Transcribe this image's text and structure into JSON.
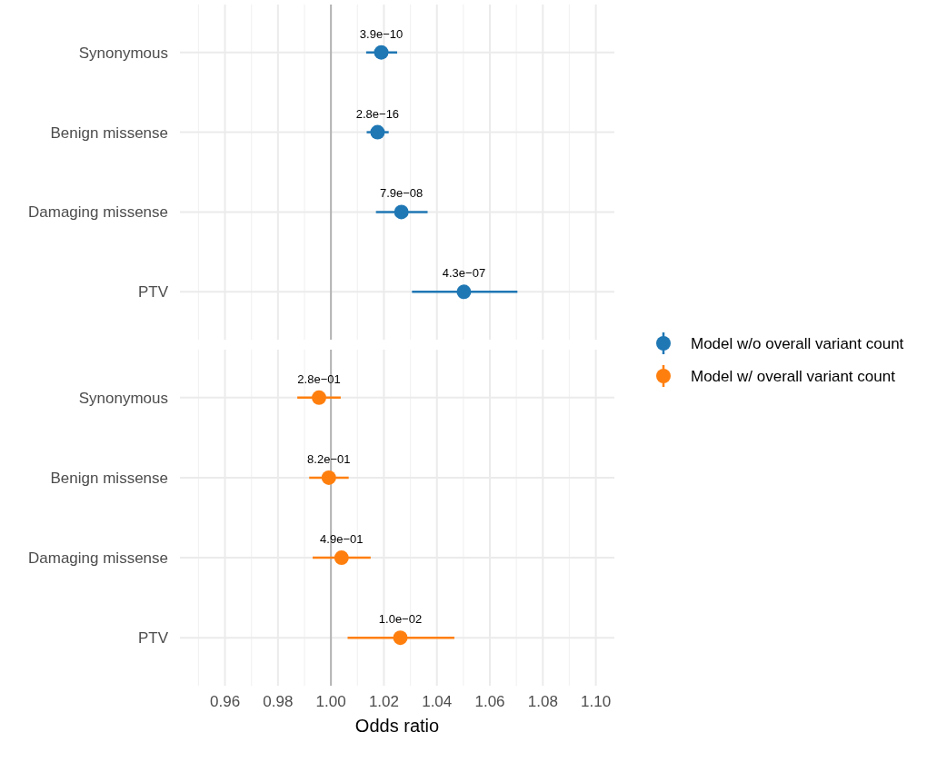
{
  "chart_data": [
    {
      "type": "scatter",
      "orientation": "horizontal",
      "categories": [
        "Synonymous",
        "Benign missense",
        "Damaging missense",
        "PTV"
      ],
      "series": [
        {
          "name": "Model w/o overall variant count",
          "color": "#1f77b4",
          "values": [
            1.019,
            1.0176,
            1.0266,
            1.0502
          ],
          "errors": [
            [
              1.0133,
              1.025
            ],
            [
              1.0135,
              1.0218
            ],
            [
              1.017,
              1.0365
            ],
            [
              1.0306,
              1.0704
            ]
          ]
        }
      ],
      "annotations": [
        {
          "text": "3.9e−10",
          "x": 1.019,
          "y": "Synonymous"
        },
        {
          "text": "2.8e−16",
          "x": 1.0176,
          "y": "Benign missense"
        },
        {
          "text": "7.9e−08",
          "x": 1.0266,
          "y": "Damaging missense"
        },
        {
          "text": "4.3e−07",
          "x": 1.0502,
          "y": "PTV"
        }
      ],
      "xlim": [
        0.943,
        1.107
      ],
      "xticks": [
        {
          "value": 0.95,
          "label": null
        },
        0.96,
        {
          "value": 0.97,
          "label": null
        },
        0.98,
        {
          "value": 0.99,
          "label": null
        },
        1,
        {
          "value": 1.01,
          "label": null
        },
        1.02,
        {
          "value": 1.03,
          "label": null
        },
        1.04,
        {
          "value": 1.05,
          "label": null
        },
        1.06,
        {
          "value": 1.07,
          "label": null
        },
        1.08,
        {
          "value": 1.09,
          "label": null
        },
        1.1
      ],
      "tick_labels": "y",
      "grid": true,
      "legend": "right",
      "ref_lines": [
        {
          "axis": "x",
          "value": 1,
          "color": "#b3b3b3"
        }
      ]
    },
    {
      "type": "scatter",
      "orientation": "horizontal",
      "categories": [
        "Synonymous",
        "Benign missense",
        "Damaging missense",
        "PTV"
      ],
      "series": [
        {
          "name": "Model w/ overall variant count",
          "color": "#ff7f0e",
          "values": [
            0.9955,
            0.9992,
            1.004,
            1.0262
          ],
          "errors": [
            [
              0.9873,
              1.0037
            ],
            [
              0.9918,
              1.0067
            ],
            [
              0.9931,
              1.015
            ],
            [
              1.0063,
              1.0466
            ]
          ]
        }
      ],
      "annotations": [
        {
          "text": "2.8e−01",
          "x": 0.9955,
          "y": "Synonymous"
        },
        {
          "text": "8.2e−01",
          "x": 0.9992,
          "y": "Benign missense"
        },
        {
          "text": "4.9e−01",
          "x": 1.004,
          "y": "Damaging missense"
        },
        {
          "text": "1.0e−02",
          "x": 1.0262,
          "y": "PTV"
        }
      ],
      "xlabel": "Odds ratio",
      "xlim": [
        0.943,
        1.107
      ],
      "xticks": [
        {
          "value": 0.95,
          "label": null
        },
        0.96,
        {
          "value": 0.97,
          "label": null
        },
        0.98,
        {
          "value": 0.99,
          "label": null
        },
        {
          "value": 1,
          "label": "1.00"
        },
        {
          "value": 1.01,
          "label": null
        },
        1.02,
        {
          "value": 1.03,
          "label": null
        },
        1.04,
        {
          "value": 1.05,
          "label": null
        },
        1.06,
        {
          "value": 1.07,
          "label": null
        },
        1.08,
        {
          "value": 1.09,
          "label": null
        },
        {
          "value": 1.1,
          "label": "1.10"
        }
      ],
      "grid": true,
      "legend": "right",
      "ref_lines": [
        {
          "axis": "x",
          "value": 1,
          "color": "#b3b3b3"
        }
      ]
    }
  ]
}
